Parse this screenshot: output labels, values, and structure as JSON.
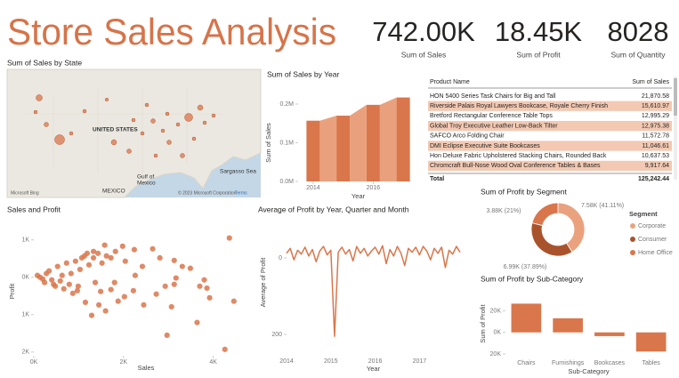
{
  "title": "Store Sales Analysis",
  "kpis": [
    {
      "value": "742.00K",
      "label": "Sum of Sales"
    },
    {
      "value": "18.45K",
      "label": "Sum of Profit"
    },
    {
      "value": "8028",
      "label": "Sum of Quantity"
    }
  ],
  "map": {
    "title": "Sum of Sales by State",
    "labels": [
      "UNITED STATES",
      "MEXICO",
      "Gulf of",
      "Mexico",
      "Sargasso Sea"
    ],
    "attribution": "Microsoft Bing",
    "copyright": "© 2023 Microsoft Corporation",
    "terms": "Terms"
  },
  "table": {
    "headers": [
      "Product Name",
      "Sum of Sales"
    ],
    "rows": [
      [
        "HON 5400 Series Task Chairs for Big and Tall",
        "21,870.58"
      ],
      [
        "Riverside Palais Royal Lawyers Bookcase, Royale Cherry Finish",
        "15,610.97"
      ],
      [
        "Bretford Rectangular Conference Table Tops",
        "12,995.29"
      ],
      [
        "Global Troy Executive Leather Low-Back Tilter",
        "12,975.38"
      ],
      [
        "SAFCO Arco Folding Chair",
        "11,572.78"
      ],
      [
        "DMI Eclipse Executive Suite Bookcases",
        "11,046.61"
      ],
      [
        "Hon Deluxe Fabric Upholstered Stacking Chairs, Rounded Back",
        "10,637.53"
      ],
      [
        "Chromcraft Bull-Nose Wood Oval Conference Tables & Bases",
        "9,917.64"
      ]
    ],
    "total": [
      "Total",
      "125,242.44"
    ]
  },
  "chart_data": [
    {
      "type": "ribbon",
      "title": "Sum of Sales by Year",
      "y_label": "Sum of Sales",
      "x_label": "Year",
      "x": [
        2014,
        2015,
        2016,
        2017
      ],
      "values": [
        157000,
        170000,
        198000,
        217000
      ],
      "color": "#d9764b",
      "ribbon_color": "#e9a17d",
      "xlim": [
        2013.5,
        2017.5
      ],
      "xticks": [
        2014,
        2016
      ],
      "ylim": [
        0,
        200000
      ],
      "yticks": [
        {
          "value": 0,
          "label": "0.0M"
        },
        {
          "value": 100000,
          "label": "0.1M"
        },
        {
          "value": 200000,
          "label": "0.2M"
        }
      ]
    },
    {
      "type": "scatter",
      "title": "Sales and Profit",
      "y_label": "Profit",
      "x_label": "Sales",
      "color": "#d9764b",
      "x": [
        4360,
        2650,
        2810,
        3130,
        3490,
        3310,
        3800,
        3700,
        3170,
        2240,
        2420,
        2040,
        2260,
        1800,
        1880,
        1600,
        1450,
        1720,
        1370,
        1490,
        2450,
        2730,
        2930,
        3070,
        2970,
        3640,
        4460,
        4260,
        3130,
        970,
        1150,
        1290,
        2020,
        2220,
        3860,
        3920,
        140,
        240,
        340,
        440,
        530,
        630,
        730,
        830,
        930,
        1030,
        1130,
        1230,
        1330,
        1430,
        1520,
        1620,
        80,
        200,
        280,
        400,
        480,
        590,
        670,
        790,
        870,
        990,
        1070,
        1190,
        1330,
        1720,
        1820,
        1980,
        1580
      ],
      "values": [
        1050,
        760,
        520,
        450,
        240,
        290,
        -70,
        -240,
        -20,
        740,
        290,
        430,
        50,
        -140,
        -640,
        -900,
        -740,
        -330,
        -140,
        -380,
        -740,
        -450,
        -240,
        -790,
        -1550,
        -1210,
        -640,
        -1930,
        -190,
        -360,
        -670,
        -1020,
        -520,
        -360,
        -290,
        -550,
        0,
        -140,
        170,
        -190,
        290,
        50,
        380,
        100,
        430,
        210,
        570,
        330,
        520,
        640,
        380,
        570,
        50,
        -50,
        100,
        -70,
        -240,
        -100,
        -310,
        -190,
        -430,
        -240,
        520,
        640,
        690,
        520,
        690,
        830,
        860
      ],
      "xlim": [
        0,
        5000
      ],
      "xticks": [
        {
          "value": 0,
          "label": "0K"
        },
        {
          "value": 2000,
          "label": "2K"
        },
        {
          "value": 4000,
          "label": "4K"
        }
      ],
      "ylim": [
        -2100,
        1350
      ],
      "yticks": [
        {
          "value": 1000,
          "label": "1K"
        },
        {
          "value": 0,
          "label": "0K"
        },
        {
          "value": -1000,
          "label": "1K"
        },
        {
          "value": -2000,
          "label": "2K"
        }
      ]
    },
    {
      "type": "line",
      "title": "Average of Profit by Year, Quarter and Month",
      "y_label": "Average of Profit",
      "x_label": "Year",
      "color": "#d9764b",
      "categories": [
        "2014",
        null,
        null,
        null,
        null,
        null,
        null,
        null,
        null,
        null,
        null,
        null,
        "2015",
        null,
        null,
        null,
        null,
        null,
        null,
        null,
        null,
        null,
        null,
        null,
        "2016",
        null,
        null,
        null,
        null,
        null,
        null,
        null,
        null,
        null,
        null,
        null,
        "2017",
        null,
        null,
        null,
        null,
        null,
        null,
        null,
        null,
        null,
        null,
        null
      ],
      "values": [
        12,
        25,
        -5,
        20,
        10,
        28,
        5,
        22,
        -10,
        18,
        30,
        8,
        20,
        -205,
        15,
        28,
        10,
        22,
        -8,
        30,
        12,
        25,
        5,
        18,
        28,
        10,
        32,
        -15,
        22,
        5,
        30,
        12,
        -20,
        25,
        15,
        28,
        8,
        30,
        18,
        -5,
        25,
        12,
        28,
        -25,
        20,
        10,
        30,
        15
      ],
      "ylim": [
        -221,
        93
      ],
      "yticks": [
        0,
        {
          "value": -200,
          "label": "200"
        }
      ]
    },
    {
      "type": "pie",
      "title": "Sum of Profit by Segment",
      "legend_title": "Segment",
      "categories": [
        "Corporate",
        "Consumer",
        "Home Office"
      ],
      "values": [
        7580,
        6990,
        3880
      ],
      "value_labels": [
        "7.58K (41.11%)",
        "6.99K (37.89%)",
        "3.88K (21%)"
      ],
      "colors": [
        "#eaa27e",
        "#a9532d",
        "#d9764b"
      ]
    },
    {
      "type": "bar",
      "title": "Sum of Profit by Sub-Category",
      "y_label": "Sum of Profit",
      "x_label": "Sub-Category",
      "color": "#d9764b",
      "categories": [
        "Chairs",
        "Furnishings",
        "Bookcases",
        "Tables"
      ],
      "values": [
        26590,
        13059,
        -3473,
        -17725
      ],
      "ylim": [
        -20000,
        36000
      ],
      "yticks": [
        {
          "value": 20000,
          "label": "20K"
        },
        {
          "value": 0,
          "label": "0K"
        },
        {
          "value": -20000,
          "label": "20K"
        }
      ]
    }
  ]
}
